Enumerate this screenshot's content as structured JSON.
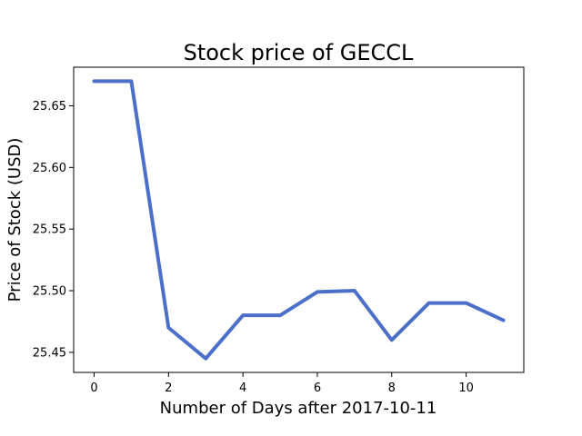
{
  "chart_data": {
    "type": "line",
    "title": "Stock price of GECCL",
    "xlabel": "Number of Days after 2017-10-11",
    "ylabel": "Price of Stock (USD)",
    "x": [
      0,
      1,
      2,
      3,
      4,
      5,
      6,
      7,
      8,
      9,
      10,
      11
    ],
    "series": [
      {
        "values": [
          25.67,
          25.67,
          25.47,
          25.445,
          25.48,
          25.48,
          25.499,
          25.5,
          25.46,
          25.49,
          25.49,
          25.476
        ],
        "color": "#4c6fc9"
      }
    ],
    "xlim": [
      -0.55,
      11.55
    ],
    "ylim": [
      25.4337,
      25.6813
    ],
    "xticks": [
      0,
      2,
      4,
      6,
      8,
      10
    ],
    "xtick_labels": [
      "0",
      "2",
      "4",
      "6",
      "8",
      "10"
    ],
    "yticks": [
      25.45,
      25.5,
      25.55,
      25.6,
      25.65
    ],
    "ytick_labels": [
      "25.45",
      "25.50",
      "25.55",
      "25.60",
      "25.65"
    ],
    "grid": false,
    "legend": "none"
  }
}
